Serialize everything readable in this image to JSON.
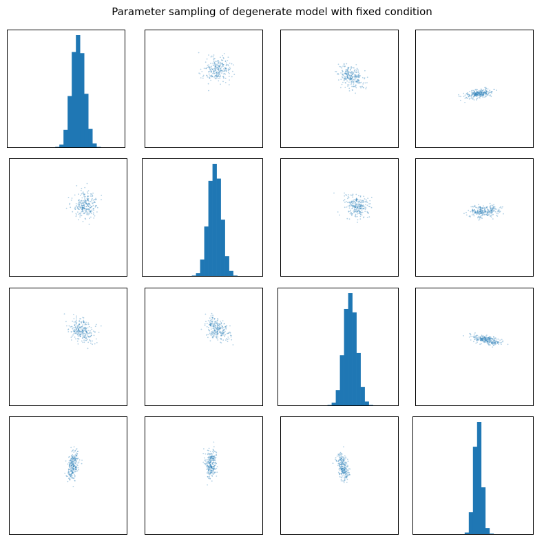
{
  "title": "Parameter sampling of degenerate model with fixed condition",
  "colors": {
    "bar": "#1f77b4",
    "point": "#1f77b4",
    "frame": "#000000"
  },
  "chart_data": {
    "type": "pair-grid",
    "title": "Parameter sampling of degenerate model with fixed condition",
    "n_params": 4,
    "axes_ticks": "hidden",
    "grid": false,
    "diagonal_type": "histogram",
    "offdiagonal_type": "scatter",
    "scatter_samples_per_panel": 250,
    "panels": [
      {
        "row": 0,
        "col": 0,
        "type": "bar",
        "bin_counts": [
          1,
          3,
          16,
          46,
          85,
          100,
          84,
          48,
          17,
          4,
          1
        ],
        "xlim": [
          0,
          1
        ],
        "ylim": [
          0,
          1.05
        ]
      },
      {
        "row": 0,
        "col": 1,
        "type": "scatter",
        "center": [
          0.61,
          0.66
        ],
        "sd": [
          0.055,
          0.055
        ],
        "rho": 0.0
      },
      {
        "row": 0,
        "col": 2,
        "type": "scatter",
        "center": [
          0.6,
          0.6
        ],
        "sd": [
          0.055,
          0.05
        ],
        "rho": -0.35
      },
      {
        "row": 0,
        "col": 3,
        "type": "scatter",
        "center": [
          0.54,
          0.46
        ],
        "sd": [
          0.06,
          0.02
        ],
        "rho": 0.45
      },
      {
        "row": 1,
        "col": 0,
        "type": "scatter",
        "center": [
          0.65,
          0.6
        ],
        "sd": [
          0.055,
          0.055
        ],
        "rho": 0.0
      },
      {
        "row": 1,
        "col": 1,
        "type": "bar",
        "bin_counts": [
          1,
          3,
          15,
          44,
          84,
          99,
          86,
          50,
          18,
          5,
          1
        ],
        "xlim": [
          0,
          1
        ],
        "ylim": [
          0,
          1.05
        ]
      },
      {
        "row": 1,
        "col": 2,
        "type": "scatter",
        "center": [
          0.64,
          0.6
        ],
        "sd": [
          0.055,
          0.05
        ],
        "rho": -0.25
      },
      {
        "row": 1,
        "col": 3,
        "type": "scatter",
        "center": [
          0.58,
          0.55
        ],
        "sd": [
          0.065,
          0.025
        ],
        "rho": 0.15
      },
      {
        "row": 2,
        "col": 0,
        "type": "scatter",
        "center": [
          0.62,
          0.63
        ],
        "sd": [
          0.055,
          0.05
        ],
        "rho": -0.35
      },
      {
        "row": 2,
        "col": 1,
        "type": "scatter",
        "center": [
          0.62,
          0.65
        ],
        "sd": [
          0.055,
          0.05
        ],
        "rho": -0.3
      },
      {
        "row": 2,
        "col": 2,
        "type": "bar",
        "bin_counts": [
          1,
          3,
          14,
          45,
          86,
          100,
          83,
          47,
          17,
          4,
          1
        ],
        "xlim": [
          0,
          1
        ],
        "ylim": [
          0,
          1.05
        ]
      },
      {
        "row": 2,
        "col": 3,
        "type": "scatter",
        "center": [
          0.6,
          0.56
        ],
        "sd": [
          0.06,
          0.022
        ],
        "rho": -0.5
      },
      {
        "row": 3,
        "col": 0,
        "type": "scatter",
        "center": [
          0.54,
          0.59
        ],
        "sd": [
          0.025,
          0.06
        ],
        "rho": 0.3
      },
      {
        "row": 3,
        "col": 1,
        "type": "scatter",
        "center": [
          0.56,
          0.6
        ],
        "sd": [
          0.022,
          0.06
        ],
        "rho": 0.05
      },
      {
        "row": 3,
        "col": 2,
        "type": "scatter",
        "center": [
          0.53,
          0.57
        ],
        "sd": [
          0.025,
          0.055
        ],
        "rho": -0.45
      },
      {
        "row": 3,
        "col": 3,
        "type": "bar",
        "bin_counts": [
          2,
          20,
          78,
          100,
          42,
          6,
          1
        ],
        "xlim": [
          0,
          1
        ],
        "ylim": [
          0,
          1.05
        ]
      }
    ]
  }
}
